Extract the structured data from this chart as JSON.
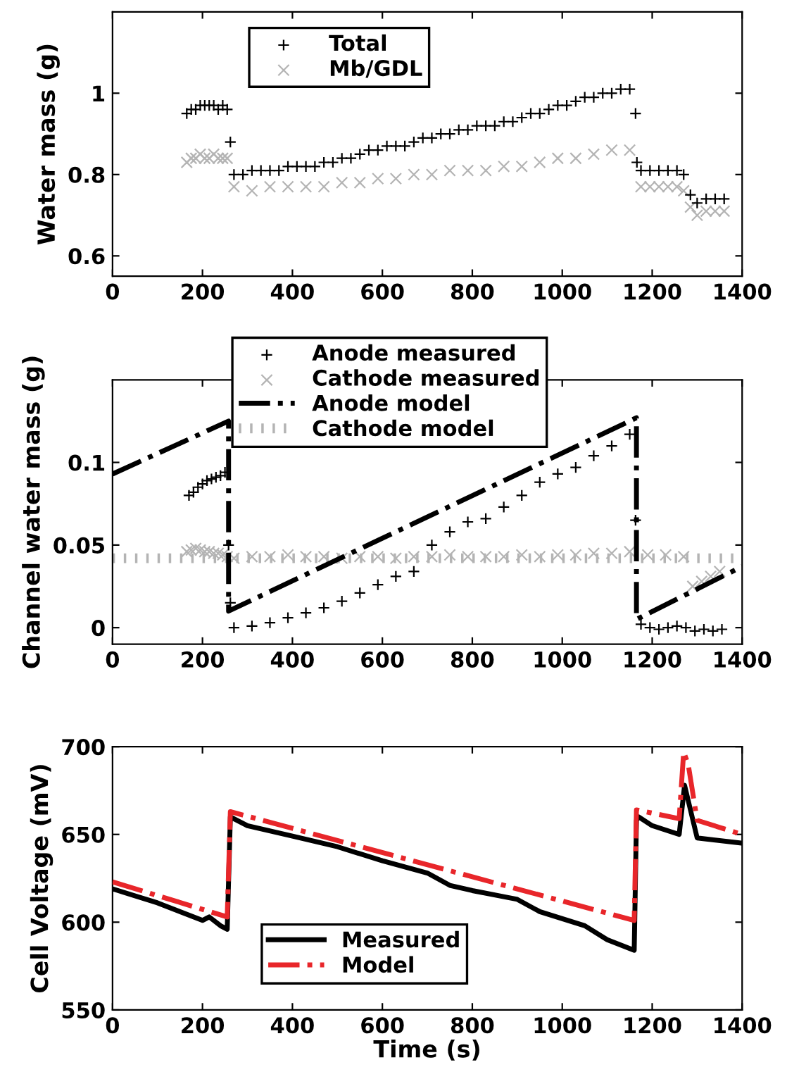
{
  "chart_data": [
    {
      "type": "scatter",
      "ylabel": "Water mass (g)",
      "xlim": [
        0,
        1400
      ],
      "xticks": [
        0,
        200,
        400,
        600,
        800,
        1000,
        1200,
        1400
      ],
      "ylim": [
        0.55,
        1.2
      ],
      "yticks": [
        0.6,
        0.8,
        1
      ],
      "legend": "top left",
      "grid": false,
      "series": [
        {
          "name": "Total",
          "marker": "cross",
          "color": "#000000",
          "x": [
            165,
            175,
            185,
            195,
            205,
            215,
            225,
            235,
            245,
            255,
            262,
            270,
            290,
            310,
            330,
            350,
            370,
            390,
            410,
            430,
            450,
            470,
            490,
            510,
            530,
            550,
            570,
            590,
            610,
            630,
            650,
            670,
            690,
            710,
            730,
            750,
            770,
            790,
            810,
            830,
            850,
            870,
            890,
            910,
            930,
            950,
            970,
            990,
            1010,
            1030,
            1050,
            1070,
            1090,
            1110,
            1130,
            1150,
            1163,
            1166,
            1175,
            1195,
            1215,
            1235,
            1255,
            1270,
            1285,
            1300,
            1320,
            1340,
            1360
          ],
          "values": [
            0.95,
            0.96,
            0.96,
            0.97,
            0.97,
            0.97,
            0.97,
            0.96,
            0.97,
            0.96,
            0.88,
            0.8,
            0.8,
            0.81,
            0.81,
            0.81,
            0.81,
            0.82,
            0.82,
            0.82,
            0.82,
            0.83,
            0.83,
            0.84,
            0.84,
            0.85,
            0.86,
            0.86,
            0.87,
            0.87,
            0.87,
            0.88,
            0.89,
            0.89,
            0.9,
            0.9,
            0.91,
            0.91,
            0.92,
            0.92,
            0.92,
            0.93,
            0.93,
            0.94,
            0.95,
            0.95,
            0.96,
            0.97,
            0.97,
            0.98,
            0.99,
            0.99,
            1.0,
            1.0,
            1.01,
            1.01,
            0.95,
            0.83,
            0.81,
            0.81,
            0.81,
            0.81,
            0.81,
            0.8,
            0.75,
            0.73,
            0.74,
            0.74,
            0.74
          ]
        },
        {
          "name": "Mb/GDL",
          "marker": "x",
          "color": "#b4b4b4",
          "x": [
            165,
            175,
            185,
            195,
            205,
            215,
            225,
            235,
            245,
            255,
            270,
            310,
            350,
            390,
            430,
            470,
            510,
            550,
            590,
            630,
            670,
            710,
            750,
            790,
            830,
            870,
            910,
            950,
            990,
            1030,
            1070,
            1110,
            1150,
            1175,
            1195,
            1215,
            1235,
            1255,
            1270,
            1285,
            1300,
            1320,
            1340,
            1360
          ],
          "values": [
            0.83,
            0.84,
            0.84,
            0.85,
            0.84,
            0.84,
            0.85,
            0.84,
            0.84,
            0.84,
            0.77,
            0.76,
            0.77,
            0.77,
            0.77,
            0.77,
            0.78,
            0.78,
            0.79,
            0.79,
            0.8,
            0.8,
            0.81,
            0.81,
            0.81,
            0.82,
            0.82,
            0.83,
            0.84,
            0.84,
            0.85,
            0.86,
            0.86,
            0.77,
            0.77,
            0.77,
            0.77,
            0.77,
            0.76,
            0.72,
            0.7,
            0.71,
            0.71,
            0.71
          ]
        }
      ]
    },
    {
      "type": "scatter",
      "ylabel": "Channel water mass (g)",
      "xlim": [
        0,
        1400
      ],
      "xticks": [
        0,
        200,
        400,
        600,
        800,
        1000,
        1200,
        1400
      ],
      "ylim": [
        -0.01,
        0.15
      ],
      "yticks": [
        0,
        0.05,
        0.1
      ],
      "legend": "top",
      "grid": false,
      "series": [
        {
          "name": "Anode measured",
          "marker": "cross",
          "color": "#000000",
          "x": [
            170,
            180,
            190,
            200,
            210,
            220,
            230,
            240,
            250,
            258,
            262,
            270,
            310,
            350,
            390,
            430,
            470,
            510,
            550,
            590,
            630,
            670,
            710,
            750,
            790,
            830,
            870,
            910,
            950,
            990,
            1030,
            1070,
            1110,
            1150,
            1163,
            1175,
            1195,
            1215,
            1235,
            1255,
            1275,
            1295,
            1315,
            1335,
            1355
          ],
          "values": [
            0.08,
            0.082,
            0.085,
            0.087,
            0.089,
            0.09,
            0.091,
            0.092,
            0.094,
            0.05,
            0.015,
            0.0,
            0.001,
            0.003,
            0.006,
            0.009,
            0.012,
            0.016,
            0.021,
            0.026,
            0.031,
            0.034,
            0.05,
            0.058,
            0.064,
            0.066,
            0.073,
            0.08,
            0.088,
            0.093,
            0.097,
            0.104,
            0.11,
            0.117,
            0.065,
            0.002,
            0.0,
            -0.001,
            0.0,
            0.001,
            0.0,
            -0.002,
            -0.001,
            -0.002,
            -0.001
          ]
        },
        {
          "name": "Cathode measured",
          "marker": "x",
          "color": "#b4b4b4",
          "x": [
            165,
            175,
            185,
            195,
            205,
            215,
            225,
            235,
            245,
            255,
            270,
            310,
            350,
            390,
            430,
            470,
            510,
            550,
            590,
            630,
            670,
            710,
            750,
            790,
            830,
            870,
            910,
            950,
            990,
            1030,
            1070,
            1110,
            1150,
            1190,
            1230,
            1270,
            1290,
            1310,
            1330,
            1350
          ],
          "values": [
            0.046,
            0.047,
            0.048,
            0.047,
            0.046,
            0.046,
            0.045,
            0.045,
            0.044,
            0.043,
            0.042,
            0.043,
            0.043,
            0.044,
            0.043,
            0.043,
            0.042,
            0.043,
            0.043,
            0.042,
            0.043,
            0.043,
            0.044,
            0.043,
            0.043,
            0.043,
            0.044,
            0.043,
            0.044,
            0.044,
            0.045,
            0.045,
            0.046,
            0.044,
            0.044,
            0.043,
            0.025,
            0.028,
            0.031,
            0.034
          ]
        },
        {
          "name": "Anode model",
          "type": "line",
          "line_style": "dashdot",
          "color": "#000000",
          "x": [
            0,
            258,
            258,
            1165,
            1165,
            1400
          ],
          "values": [
            0.093,
            0.125,
            0.01,
            0.127,
            0.005,
            0.037
          ]
        },
        {
          "name": "Cathode model",
          "type": "line",
          "line_style": "dotted",
          "color": "#b4b4b4",
          "x": [
            0,
            1400
          ],
          "values": [
            0.042,
            0.042
          ]
        }
      ]
    },
    {
      "type": "line",
      "xlabel": "Time (s)",
      "ylabel": "Cell Voltage (mV)",
      "xlim": [
        0,
        1400
      ],
      "xticks": [
        0,
        200,
        400,
        600,
        800,
        1000,
        1200,
        1400
      ],
      "ylim": [
        550,
        700
      ],
      "yticks": [
        550,
        600,
        650,
        700
      ],
      "legend": "bottom left",
      "grid": false,
      "series": [
        {
          "name": "Measured",
          "line_style": "solid",
          "color": "#000000",
          "x": [
            0,
            100,
            200,
            215,
            240,
            255,
            262,
            300,
            400,
            500,
            600,
            700,
            750,
            800,
            900,
            950,
            1000,
            1050,
            1100,
            1160,
            1165,
            1170,
            1200,
            1260,
            1272,
            1300,
            1400
          ],
          "values": [
            619,
            611,
            601,
            603,
            598,
            596,
            660,
            655,
            649,
            643,
            635,
            628,
            621,
            618,
            613,
            606,
            602,
            598,
            590,
            584,
            658,
            660,
            655,
            650,
            678,
            648,
            645
          ]
        },
        {
          "name": "Model",
          "line_style": "dashdot",
          "color": "#e8262a",
          "x": [
            0,
            255,
            262,
            1160,
            1165,
            1260,
            1270,
            1280,
            1300,
            1400
          ],
          "values": [
            623,
            603,
            663,
            601,
            664,
            659,
            697,
            690,
            658,
            650
          ]
        }
      ]
    }
  ]
}
